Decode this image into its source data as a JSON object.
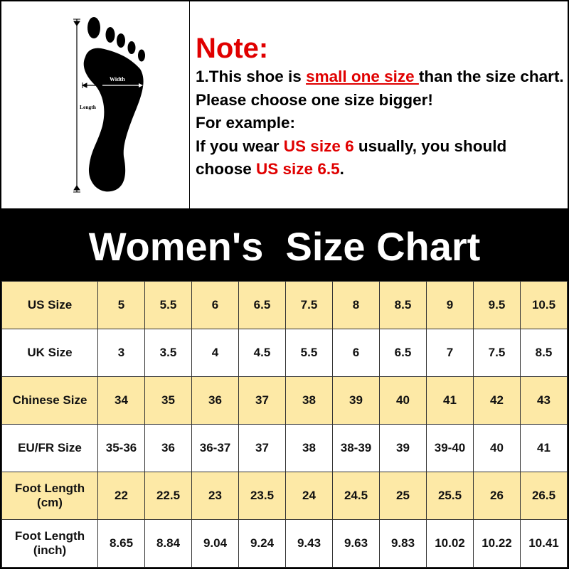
{
  "diagram": {
    "width_label": "Width",
    "length_label": "Length"
  },
  "note": {
    "heading": "Note:",
    "line1_pre": "1.This shoe is ",
    "line1_red": "small one size ",
    "line1_post": "than the size chart. Please choose one size bigger!",
    "line2": "For example:",
    "line3_pre": "If you wear ",
    "line3_red": "US size 6",
    "line3_post": " usually, you should choose ",
    "line3_red2": "US size 6.5",
    "line3_end": "."
  },
  "title": "Women's  Size Chart",
  "colors": {
    "highlight_row": "#fde9a6",
    "note_red": "#e00000",
    "band": "#000000"
  },
  "table": {
    "rows": [
      {
        "label": "US Size",
        "values": [
          "5",
          "5.5",
          "6",
          "6.5",
          "7.5",
          "8",
          "8.5",
          "9",
          "9.5",
          "10.5"
        ]
      },
      {
        "label": "UK Size",
        "values": [
          "3",
          "3.5",
          "4",
          "4.5",
          "5.5",
          "6",
          "6.5",
          "7",
          "7.5",
          "8.5"
        ]
      },
      {
        "label": "Chinese Size",
        "values": [
          "34",
          "35",
          "36",
          "37",
          "38",
          "39",
          "40",
          "41",
          "42",
          "43"
        ]
      },
      {
        "label": "EU/FR Size",
        "values": [
          "35-36",
          "36",
          "36-37",
          "37",
          "38",
          "38-39",
          "39",
          "39-40",
          "40",
          "41"
        ]
      },
      {
        "label": "Foot Length (cm)",
        "values": [
          "22",
          "22.5",
          "23",
          "23.5",
          "24",
          "24.5",
          "25",
          "25.5",
          "26",
          "26.5"
        ]
      },
      {
        "label": "Foot Length (inch)",
        "values": [
          "8.65",
          "8.84",
          "9.04",
          "9.24",
          "9.43",
          "9.63",
          "9.83",
          "10.02",
          "10.22",
          "10.41"
        ]
      }
    ]
  }
}
